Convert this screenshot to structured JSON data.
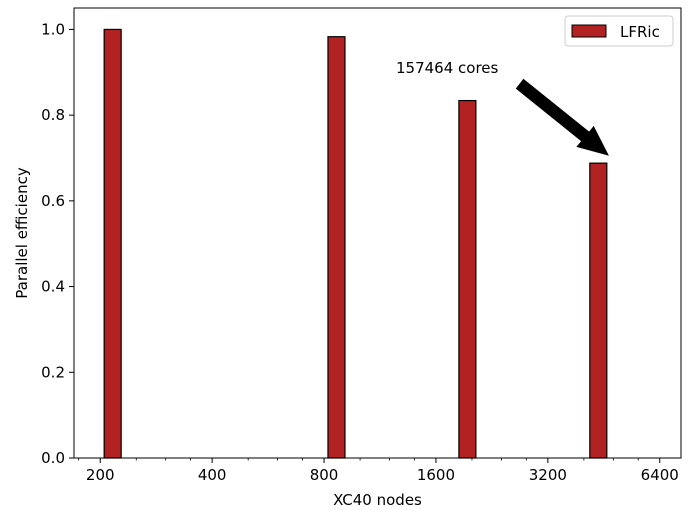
{
  "chart_data": {
    "type": "bar",
    "xlabel": "XC40 nodes",
    "ylabel": "Parallel efficiency",
    "xscale": "log2",
    "xlim": [
      170,
      7300
    ],
    "ylim": [
      0,
      1.05
    ],
    "x_ticks": [
      200,
      400,
      800,
      1600,
      3200,
      6400
    ],
    "x_tick_labels": [
      "200",
      "400",
      "800",
      "1600",
      "3200",
      "6400"
    ],
    "y_ticks": [
      0.0,
      0.2,
      0.4,
      0.6,
      0.8,
      1.0
    ],
    "y_tick_labels": [
      "0.0",
      "0.2",
      "0.4",
      "0.6",
      "0.8",
      "1.0"
    ],
    "series": [
      {
        "name": "LFRic",
        "color": "#b22222",
        "x": [
          216,
          864,
          1944,
          4374
        ],
        "values": [
          1.0,
          0.983,
          0.834,
          0.688
        ]
      }
    ],
    "legend": {
      "position": "top-right",
      "entries": [
        "LFRic"
      ]
    },
    "annotation": {
      "text": "157464 cores",
      "points_to_x": 4374,
      "points_to_y": 0.688
    },
    "grid": false
  }
}
